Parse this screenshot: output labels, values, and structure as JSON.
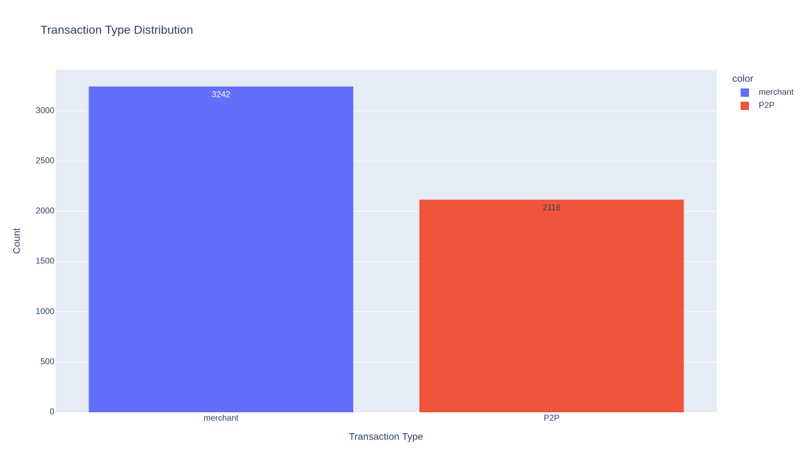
{
  "chart_data": {
    "type": "bar",
    "title": "Transaction Type Distribution",
    "x_label": "Transaction Type",
    "y_label": "Count",
    "legend_title": "color",
    "categories": [
      "merchant",
      "P2P"
    ],
    "series": [
      {
        "name": "merchant",
        "color": "#636efa",
        "values": [
          3242,
          null
        ]
      },
      {
        "name": "P2P",
        "color": "#ef553b",
        "values": [
          null,
          2116
        ]
      }
    ],
    "ylim": [
      0,
      3410
    ],
    "yticks": [
      0,
      500,
      1000,
      1500,
      2000,
      2500,
      3000
    ],
    "grid": true,
    "legend": "right"
  }
}
